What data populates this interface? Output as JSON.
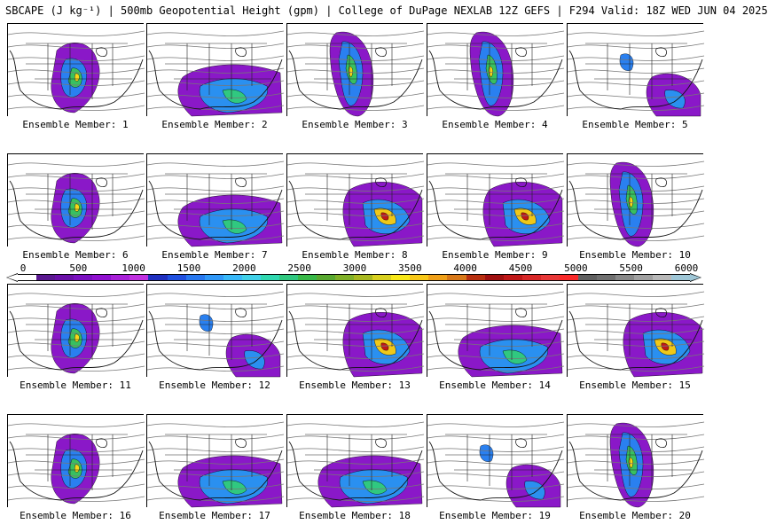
{
  "header": {
    "title": "SBCAPE (J kg⁻¹) | 500mb Geopotential Height (gpm) | College of DuPage NEXLAB 12Z GEFS | F294 Valid: 18Z WED JUN 04 2025"
  },
  "panels": [
    {
      "label": "Ensemble Member: 1"
    },
    {
      "label": "Ensemble Member: 2"
    },
    {
      "label": "Ensemble Member: 3"
    },
    {
      "label": "Ensemble Member: 4"
    },
    {
      "label": "Ensemble Member: 5"
    },
    {
      "label": "Ensemble Member: 6"
    },
    {
      "label": "Ensemble Member: 7"
    },
    {
      "label": "Ensemble Member: 8"
    },
    {
      "label": "Ensemble Member: 9"
    },
    {
      "label": "Ensemble Member: 10"
    },
    {
      "label": "Ensemble Member: 11"
    },
    {
      "label": "Ensemble Member: 12"
    },
    {
      "label": "Ensemble Member: 13"
    },
    {
      "label": "Ensemble Member: 14"
    },
    {
      "label": "Ensemble Member: 15"
    },
    {
      "label": "Ensemble Member: 16"
    },
    {
      "label": "Ensemble Member: 17"
    },
    {
      "label": "Ensemble Member: 18"
    },
    {
      "label": "Ensemble Member: 19"
    },
    {
      "label": "Ensemble Member: 20"
    }
  ],
  "colorbar": {
    "ticks": [
      "0",
      "500",
      "1000",
      "1500",
      "2000",
      "2500",
      "3000",
      "3500",
      "4000",
      "4500",
      "5000",
      "5500",
      "6000"
    ],
    "colors": [
      "#ffffff",
      "#5a1890",
      "#6a10a8",
      "#7a10c0",
      "#9010d0",
      "#a820d8",
      "#c030e0",
      "#2030c0",
      "#2050e0",
      "#2878f0",
      "#3098f8",
      "#38b8f8",
      "#40d0e8",
      "#30d8b0",
      "#30c880",
      "#38b848",
      "#58a830",
      "#80b028",
      "#a8b820",
      "#d8d020",
      "#f8e818",
      "#f8c818",
      "#f0a018",
      "#d87818",
      "#b83010",
      "#a01010",
      "#c01818",
      "#d82828",
      "#e83838",
      "#f82828",
      "#606060",
      "#707070",
      "#888888",
      "#a0a0a0",
      "#b8b8b8",
      "#9ec6d6"
    ]
  }
}
